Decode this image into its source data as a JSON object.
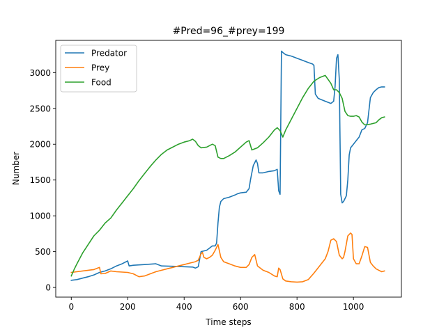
{
  "chart_data": {
    "type": "line",
    "title": "#Pred=96_#prey=199",
    "xlabel": "Time steps",
    "ylabel": "Number",
    "xlim": [
      -55,
      1170
    ],
    "ylim": [
      -135,
      3450
    ],
    "xticks": [
      0,
      200,
      400,
      600,
      800,
      1000
    ],
    "yticks": [
      0,
      500,
      1000,
      1500,
      2000,
      2500,
      3000
    ],
    "grid": false,
    "legend": "top-left",
    "series": [
      {
        "name": "Predator",
        "color": "#1f77b4",
        "x": [
          0,
          20,
          40,
          60,
          80,
          100,
          120,
          140,
          160,
          180,
          200,
          205,
          220,
          260,
          300,
          320,
          360,
          400,
          430,
          440,
          450,
          460,
          470,
          480,
          490,
          500,
          505,
          510,
          515,
          520,
          525,
          530,
          540,
          560,
          580,
          590,
          600,
          620,
          630,
          635,
          645,
          655,
          660,
          665,
          680,
          700,
          720,
          730,
          735,
          740,
          745,
          750,
          760,
          780,
          800,
          820,
          840,
          855,
          860,
          865,
          875,
          900,
          920,
          930,
          935,
          940,
          945,
          950,
          955,
          960,
          965,
          975,
          980,
          985,
          990,
          1000,
          1020,
          1030,
          1040,
          1050,
          1060,
          1070,
          1080,
          1090,
          1100,
          1110
        ],
        "values": [
          100,
          110,
          130,
          150,
          175,
          210,
          230,
          260,
          300,
          330,
          370,
          300,
          310,
          320,
          330,
          300,
          295,
          290,
          285,
          270,
          290,
          500,
          510,
          520,
          550,
          580,
          580,
          580,
          620,
          900,
          1120,
          1200,
          1240,
          1260,
          1290,
          1310,
          1320,
          1330,
          1380,
          1500,
          1700,
          1780,
          1730,
          1600,
          1600,
          1620,
          1630,
          1650,
          1350,
          1300,
          3300,
          3280,
          3250,
          3230,
          3200,
          3170,
          3140,
          3120,
          3100,
          2700,
          2640,
          2600,
          2570,
          2600,
          2800,
          3200,
          3250,
          2900,
          1300,
          1180,
          1200,
          1280,
          1500,
          1850,
          1950,
          2000,
          2100,
          2200,
          2220,
          2300,
          2650,
          2720,
          2760,
          2790,
          2800,
          2800
        ]
      },
      {
        "name": "Prey",
        "color": "#ff7f0e",
        "x": [
          0,
          20,
          40,
          60,
          80,
          100,
          105,
          120,
          140,
          160,
          180,
          200,
          220,
          240,
          260,
          280,
          300,
          320,
          340,
          360,
          380,
          400,
          420,
          440,
          450,
          460,
          465,
          470,
          480,
          490,
          500,
          510,
          520,
          530,
          540,
          560,
          580,
          600,
          620,
          630,
          640,
          650,
          660,
          680,
          700,
          720,
          730,
          735,
          740,
          750,
          760,
          780,
          800,
          820,
          840,
          860,
          880,
          900,
          910,
          920,
          930,
          940,
          950,
          960,
          965,
          970,
          980,
          990,
          995,
          1000,
          1010,
          1020,
          1030,
          1040,
          1050,
          1060,
          1070,
          1080,
          1090,
          1100,
          1110
        ],
        "values": [
          210,
          220,
          230,
          240,
          250,
          280,
          190,
          195,
          230,
          220,
          215,
          210,
          190,
          150,
          160,
          190,
          220,
          240,
          260,
          280,
          300,
          320,
          340,
          360,
          380,
          470,
          490,
          420,
          400,
          420,
          450,
          520,
          600,
          420,
          360,
          330,
          300,
          280,
          280,
          320,
          420,
          460,
          300,
          240,
          210,
          160,
          150,
          270,
          250,
          120,
          90,
          80,
          75,
          80,
          110,
          200,
          300,
          400,
          500,
          660,
          680,
          640,
          450,
          400,
          420,
          500,
          720,
          760,
          740,
          400,
          330,
          330,
          440,
          570,
          560,
          350,
          300,
          260,
          240,
          220,
          230
        ]
      },
      {
        "name": "Food",
        "color": "#2ca02c",
        "x": [
          0,
          10,
          20,
          40,
          60,
          80,
          100,
          120,
          140,
          160,
          180,
          200,
          220,
          240,
          260,
          280,
          300,
          320,
          340,
          360,
          380,
          400,
          420,
          430,
          440,
          450,
          460,
          480,
          500,
          510,
          520,
          530,
          540,
          560,
          580,
          600,
          620,
          630,
          640,
          660,
          680,
          700,
          720,
          730,
          740,
          750,
          760,
          780,
          800,
          820,
          840,
          860,
          880,
          900,
          920,
          930,
          940,
          950,
          960,
          970,
          980,
          990,
          1000,
          1010,
          1020,
          1030,
          1040,
          1060,
          1080,
          1090,
          1100,
          1110
        ],
        "values": [
          160,
          250,
          330,
          480,
          600,
          720,
          800,
          900,
          970,
          1080,
          1180,
          1280,
          1380,
          1490,
          1590,
          1690,
          1780,
          1860,
          1920,
          1960,
          2000,
          2030,
          2050,
          2070,
          2040,
          1980,
          1950,
          1960,
          2000,
          1980,
          1820,
          1800,
          1800,
          1840,
          1890,
          1960,
          2030,
          2050,
          1920,
          1950,
          2020,
          2100,
          2200,
          2230,
          2190,
          2100,
          2200,
          2350,
          2500,
          2650,
          2780,
          2880,
          2930,
          2960,
          2850,
          2760,
          2760,
          2720,
          2640,
          2460,
          2400,
          2390,
          2390,
          2400,
          2380,
          2310,
          2270,
          2280,
          2300,
          2340,
          2370,
          2380
        ]
      }
    ]
  }
}
